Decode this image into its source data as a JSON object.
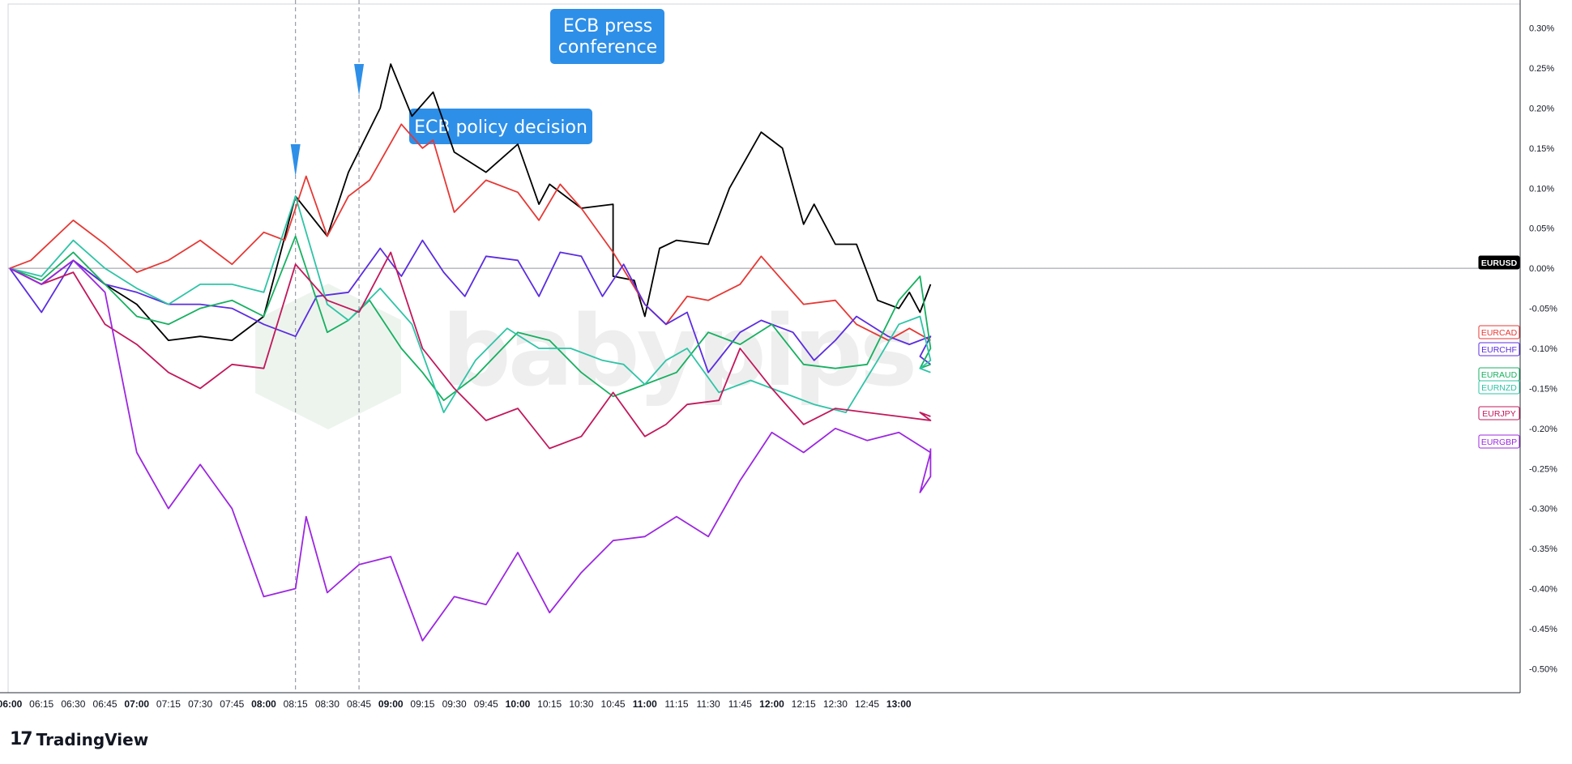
{
  "brand": {
    "watermark": "babypips",
    "footer_mark": "17",
    "footer_name": "TradingView"
  },
  "annotations": [
    {
      "label": "ECB policy decision",
      "time": "08:15"
    },
    {
      "label_lines": [
        "ECB press",
        "conference"
      ],
      "time": "08:45"
    }
  ],
  "chart_data": {
    "type": "line",
    "x_ticks": [
      "06:00",
      "06:15",
      "06:30",
      "06:45",
      "07:00",
      "07:15",
      "07:30",
      "07:45",
      "08:00",
      "08:15",
      "08:30",
      "08:45",
      "09:00",
      "09:15",
      "09:30",
      "09:45",
      "10:00",
      "10:15",
      "10:30",
      "10:45",
      "11:00",
      "11:15",
      "11:30",
      "11:45",
      "12:00",
      "12:15",
      "12:30",
      "12:45",
      "13:00"
    ],
    "x_bold_ticks": [
      "06:00",
      "07:00",
      "08:00",
      "09:00",
      "10:00",
      "11:00",
      "12:00",
      "13:00"
    ],
    "x_range_minutes": [
      0,
      430
    ],
    "x_unit": "minutes after 06:00",
    "y_ticks": [
      "0.30%",
      "0.25%",
      "0.20%",
      "0.15%",
      "0.10%",
      "0.05%",
      "0.00%",
      "-0.05%",
      "-0.10%",
      "-0.15%",
      "-0.20%",
      "-0.25%",
      "-0.30%",
      "-0.35%",
      "-0.40%",
      "-0.45%",
      "-0.50%"
    ],
    "ylim": [
      -0.53,
      0.33
    ],
    "y_unit": "%",
    "series": [
      {
        "name": "EURUSD",
        "color": "#000000",
        "label_style": "filled",
        "values": [
          [
            0,
            0
          ],
          [
            15,
            -0.02
          ],
          [
            30,
            0.01
          ],
          [
            45,
            -0.02
          ],
          [
            60,
            -0.045
          ],
          [
            75,
            -0.09
          ],
          [
            90,
            -0.085
          ],
          [
            105,
            -0.09
          ],
          [
            120,
            -0.06
          ],
          [
            135,
            0.09
          ],
          [
            150,
            0.04
          ],
          [
            160,
            0.12
          ],
          [
            175,
            0.2
          ],
          [
            180,
            0.255
          ],
          [
            190,
            0.19
          ],
          [
            200,
            0.22
          ],
          [
            210,
            0.145
          ],
          [
            225,
            0.12
          ],
          [
            240,
            0.155
          ],
          [
            250,
            0.08
          ],
          [
            255,
            0.105
          ],
          [
            270,
            0.075
          ],
          [
            285,
            0.08
          ],
          [
            285,
            -0.01
          ],
          [
            295,
            -0.015
          ],
          [
            300,
            -0.06
          ],
          [
            307,
            0.025
          ],
          [
            315,
            0.035
          ],
          [
            330,
            0.03
          ],
          [
            340,
            0.1
          ],
          [
            355,
            0.17
          ],
          [
            365,
            0.15
          ],
          [
            375,
            0.055
          ],
          [
            380,
            0.08
          ],
          [
            390,
            0.03
          ],
          [
            400,
            0.03
          ],
          [
            410,
            -0.04
          ],
          [
            420,
            -0.05
          ],
          [
            425,
            -0.03
          ],
          [
            430,
            -0.055
          ],
          [
            435,
            -0.02
          ]
        ]
      },
      {
        "name": "EURCAD",
        "color": "#e53935",
        "label_style": "outline",
        "values": [
          [
            0,
            0
          ],
          [
            10,
            0.01
          ],
          [
            30,
            0.06
          ],
          [
            45,
            0.03
          ],
          [
            60,
            -0.005
          ],
          [
            75,
            0.01
          ],
          [
            90,
            0.035
          ],
          [
            105,
            0.005
          ],
          [
            120,
            0.045
          ],
          [
            130,
            0.035
          ],
          [
            140,
            0.115
          ],
          [
            150,
            0.04
          ],
          [
            160,
            0.09
          ],
          [
            170,
            0.11
          ],
          [
            185,
            0.18
          ],
          [
            195,
            0.15
          ],
          [
            200,
            0.16
          ],
          [
            210,
            0.07
          ],
          [
            225,
            0.11
          ],
          [
            240,
            0.095
          ],
          [
            250,
            0.06
          ],
          [
            260,
            0.105
          ],
          [
            270,
            0.075
          ],
          [
            285,
            0.02
          ],
          [
            300,
            -0.045
          ],
          [
            310,
            -0.07
          ],
          [
            320,
            -0.035
          ],
          [
            330,
            -0.04
          ],
          [
            345,
            -0.02
          ],
          [
            355,
            0.015
          ],
          [
            375,
            -0.045
          ],
          [
            390,
            -0.04
          ],
          [
            400,
            -0.07
          ],
          [
            415,
            -0.09
          ],
          [
            425,
            -0.075
          ],
          [
            435,
            -0.09
          ]
        ]
      },
      {
        "name": "EURCHF",
        "color": "#5b2de0",
        "label_style": "outline",
        "values": [
          [
            0,
            0
          ],
          [
            15,
            -0.055
          ],
          [
            30,
            0.01
          ],
          [
            45,
            -0.02
          ],
          [
            60,
            -0.03
          ],
          [
            75,
            -0.045
          ],
          [
            90,
            -0.045
          ],
          [
            105,
            -0.05
          ],
          [
            120,
            -0.07
          ],
          [
            135,
            -0.085
          ],
          [
            145,
            -0.035
          ],
          [
            160,
            -0.03
          ],
          [
            175,
            0.025
          ],
          [
            185,
            -0.01
          ],
          [
            195,
            0.035
          ],
          [
            205,
            -0.005
          ],
          [
            215,
            -0.035
          ],
          [
            225,
            0.015
          ],
          [
            240,
            0.01
          ],
          [
            250,
            -0.035
          ],
          [
            260,
            0.02
          ],
          [
            270,
            0.015
          ],
          [
            280,
            -0.035
          ],
          [
            290,
            0.005
          ],
          [
            300,
            -0.045
          ],
          [
            310,
            -0.07
          ],
          [
            320,
            -0.055
          ],
          [
            330,
            -0.13
          ],
          [
            345,
            -0.08
          ],
          [
            355,
            -0.065
          ],
          [
            370,
            -0.08
          ],
          [
            380,
            -0.115
          ],
          [
            390,
            -0.09
          ],
          [
            400,
            -0.06
          ],
          [
            415,
            -0.085
          ],
          [
            425,
            -0.095
          ],
          [
            435,
            -0.085
          ],
          [
            430,
            -0.11
          ],
          [
            435,
            -0.12
          ]
        ]
      },
      {
        "name": "EURAUD",
        "color": "#16b060",
        "label_style": "filled",
        "values": [
          [
            0,
            0
          ],
          [
            15,
            -0.015
          ],
          [
            30,
            0.02
          ],
          [
            45,
            -0.02
          ],
          [
            60,
            -0.06
          ],
          [
            75,
            -0.07
          ],
          [
            90,
            -0.05
          ],
          [
            105,
            -0.04
          ],
          [
            120,
            -0.06
          ],
          [
            135,
            0.04
          ],
          [
            150,
            -0.08
          ],
          [
            160,
            -0.065
          ],
          [
            170,
            -0.04
          ],
          [
            185,
            -0.1
          ],
          [
            195,
            -0.13
          ],
          [
            205,
            -0.165
          ],
          [
            220,
            -0.135
          ],
          [
            240,
            -0.08
          ],
          [
            255,
            -0.09
          ],
          [
            270,
            -0.13
          ],
          [
            285,
            -0.16
          ],
          [
            300,
            -0.145
          ],
          [
            315,
            -0.13
          ],
          [
            330,
            -0.08
          ],
          [
            345,
            -0.095
          ],
          [
            360,
            -0.07
          ],
          [
            375,
            -0.12
          ],
          [
            390,
            -0.125
          ],
          [
            405,
            -0.12
          ],
          [
            420,
            -0.04
          ],
          [
            430,
            -0.01
          ],
          [
            435,
            -0.1
          ],
          [
            430,
            -0.125
          ],
          [
            435,
            -0.12
          ]
        ]
      },
      {
        "name": "EURNZD",
        "color": "#2ec4a6",
        "label_style": "filled",
        "values": [
          [
            0,
            0
          ],
          [
            15,
            -0.01
          ],
          [
            30,
            0.035
          ],
          [
            45,
            0
          ],
          [
            60,
            -0.025
          ],
          [
            75,
            -0.045
          ],
          [
            90,
            -0.02
          ],
          [
            105,
            -0.02
          ],
          [
            120,
            -0.03
          ],
          [
            135,
            0.09
          ],
          [
            150,
            -0.045
          ],
          [
            160,
            -0.065
          ],
          [
            175,
            -0.025
          ],
          [
            190,
            -0.07
          ],
          [
            205,
            -0.18
          ],
          [
            220,
            -0.115
          ],
          [
            235,
            -0.075
          ],
          [
            250,
            -0.1
          ],
          [
            265,
            -0.1
          ],
          [
            280,
            -0.115
          ],
          [
            290,
            -0.12
          ],
          [
            300,
            -0.145
          ],
          [
            310,
            -0.115
          ],
          [
            320,
            -0.1
          ],
          [
            335,
            -0.155
          ],
          [
            350,
            -0.14
          ],
          [
            365,
            -0.155
          ],
          [
            380,
            -0.17
          ],
          [
            395,
            -0.18
          ],
          [
            410,
            -0.115
          ],
          [
            420,
            -0.07
          ],
          [
            430,
            -0.06
          ],
          [
            435,
            -0.115
          ],
          [
            430,
            -0.125
          ],
          [
            435,
            -0.13
          ]
        ]
      },
      {
        "name": "EURJPY",
        "color": "#c2185b",
        "label_style": "outline",
        "values": [
          [
            0,
            0
          ],
          [
            15,
            -0.02
          ],
          [
            30,
            -0.005
          ],
          [
            45,
            -0.07
          ],
          [
            60,
            -0.095
          ],
          [
            75,
            -0.13
          ],
          [
            90,
            -0.15
          ],
          [
            105,
            -0.12
          ],
          [
            120,
            -0.125
          ],
          [
            135,
            0.005
          ],
          [
            150,
            -0.04
          ],
          [
            165,
            -0.055
          ],
          [
            180,
            0.02
          ],
          [
            195,
            -0.1
          ],
          [
            210,
            -0.15
          ],
          [
            225,
            -0.19
          ],
          [
            240,
            -0.175
          ],
          [
            255,
            -0.225
          ],
          [
            270,
            -0.21
          ],
          [
            285,
            -0.155
          ],
          [
            300,
            -0.21
          ],
          [
            310,
            -0.195
          ],
          [
            320,
            -0.17
          ],
          [
            335,
            -0.165
          ],
          [
            345,
            -0.1
          ],
          [
            360,
            -0.15
          ],
          [
            375,
            -0.195
          ],
          [
            390,
            -0.175
          ],
          [
            405,
            -0.18
          ],
          [
            420,
            -0.185
          ],
          [
            435,
            -0.19
          ],
          [
            430,
            -0.18
          ],
          [
            435,
            -0.185
          ]
        ]
      },
      {
        "name": "EURGBP",
        "color": "#9c27e0",
        "label_style": "filled",
        "values": [
          [
            0,
            0
          ],
          [
            15,
            -0.02
          ],
          [
            30,
            0.01
          ],
          [
            45,
            -0.03
          ],
          [
            60,
            -0.23
          ],
          [
            75,
            -0.3
          ],
          [
            90,
            -0.245
          ],
          [
            105,
            -0.3
          ],
          [
            120,
            -0.41
          ],
          [
            135,
            -0.4
          ],
          [
            140,
            -0.31
          ],
          [
            150,
            -0.405
          ],
          [
            165,
            -0.37
          ],
          [
            180,
            -0.36
          ],
          [
            195,
            -0.465
          ],
          [
            210,
            -0.41
          ],
          [
            225,
            -0.42
          ],
          [
            240,
            -0.355
          ],
          [
            255,
            -0.43
          ],
          [
            270,
            -0.38
          ],
          [
            285,
            -0.34
          ],
          [
            300,
            -0.335
          ],
          [
            315,
            -0.31
          ],
          [
            330,
            -0.335
          ],
          [
            345,
            -0.265
          ],
          [
            360,
            -0.205
          ],
          [
            375,
            -0.23
          ],
          [
            390,
            -0.2
          ],
          [
            405,
            -0.215
          ],
          [
            420,
            -0.205
          ],
          [
            435,
            -0.23
          ],
          [
            430,
            -0.28
          ],
          [
            435,
            -0.26
          ],
          [
            435,
            -0.225
          ]
        ]
      }
    ],
    "grid": false,
    "legend_position": "right-axis labels"
  }
}
